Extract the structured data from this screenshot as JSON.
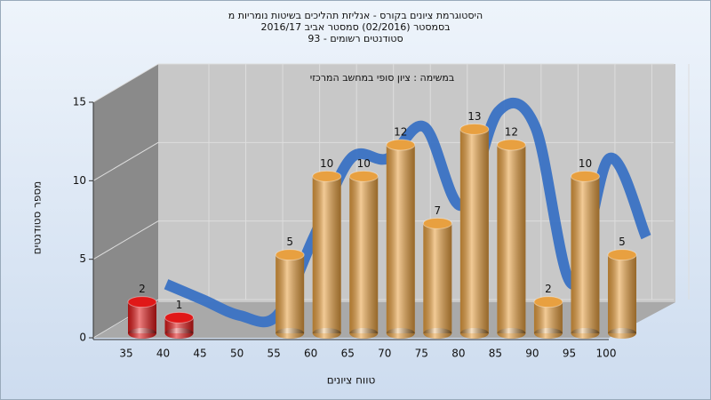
{
  "chart_data": {
    "type": "bar3d",
    "title": [
      "היסטוגרמת ציונים בקורס - אנליזת תהליכים בשיטות נומריות מ",
      "בסמסטר  (02/2016)  סמסטר אביב 2016/17",
      "סטודנטים רשומים - 93"
    ],
    "annotation": "במשימה : ציון סופי במחשב המרכזי",
    "x_label": "טווח ציונים",
    "y_label": "מספר סטודנטים",
    "categories": [
      "35",
      "40",
      "45",
      "50",
      "55",
      "60",
      "65",
      "70",
      "75",
      "80",
      "85",
      "90",
      "95",
      "100"
    ],
    "values": [
      2,
      1,
      0,
      0,
      5,
      10,
      10,
      12,
      7,
      13,
      12,
      2,
      10,
      5
    ],
    "colors": [
      "#e01818",
      "#e01818",
      "#e8a040",
      "#e8a040",
      "#e8a040",
      "#e8a040",
      "#e8a040",
      "#e8a040",
      "#e8a040",
      "#e8a040",
      "#e8a040",
      "#e8a040",
      "#e8a040",
      "#e8a040"
    ],
    "trend_color": "#3a72c4",
    "ylim": [
      0,
      15
    ],
    "yticks": [
      0,
      5,
      10,
      15
    ],
    "grid": true
  }
}
